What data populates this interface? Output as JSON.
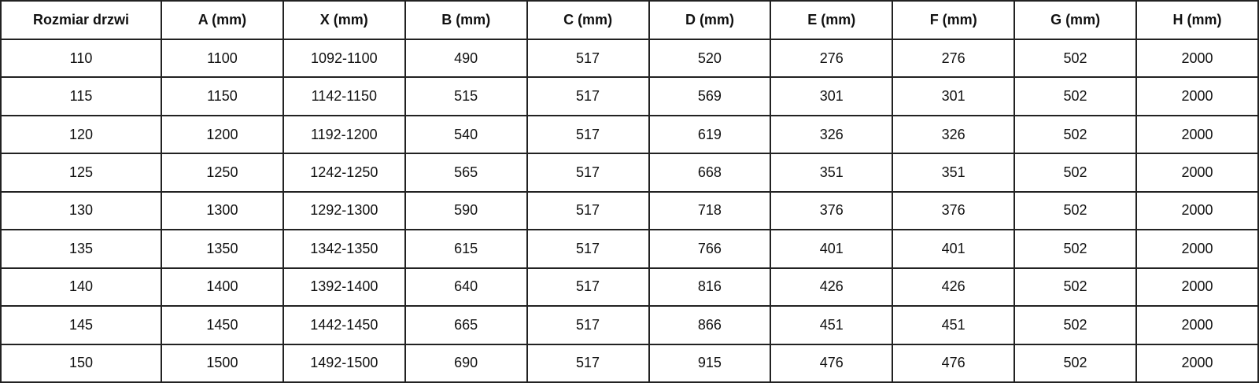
{
  "table": {
    "headers": [
      "Rozmiar drzwi",
      "A (mm)",
      "X (mm)",
      "B (mm)",
      "C (mm)",
      "D (mm)",
      "E (mm)",
      "F (mm)",
      "G (mm)",
      "H (mm)"
    ],
    "rows": [
      [
        "110",
        "1100",
        "1092-1100",
        "490",
        "517",
        "520",
        "276",
        "276",
        "502",
        "2000"
      ],
      [
        "115",
        "1150",
        "1142-1150",
        "515",
        "517",
        "569",
        "301",
        "301",
        "502",
        "2000"
      ],
      [
        "120",
        "1200",
        "1192-1200",
        "540",
        "517",
        "619",
        "326",
        "326",
        "502",
        "2000"
      ],
      [
        "125",
        "1250",
        "1242-1250",
        "565",
        "517",
        "668",
        "351",
        "351",
        "502",
        "2000"
      ],
      [
        "130",
        "1300",
        "1292-1300",
        "590",
        "517",
        "718",
        "376",
        "376",
        "502",
        "2000"
      ],
      [
        "135",
        "1350",
        "1342-1350",
        "615",
        "517",
        "766",
        "401",
        "401",
        "502",
        "2000"
      ],
      [
        "140",
        "1400",
        "1392-1400",
        "640",
        "517",
        "816",
        "426",
        "426",
        "502",
        "2000"
      ],
      [
        "145",
        "1450",
        "1442-1450",
        "665",
        "517",
        "866",
        "451",
        "451",
        "502",
        "2000"
      ],
      [
        "150",
        "1500",
        "1492-1500",
        "690",
        "517",
        "915",
        "476",
        "476",
        "502",
        "2000"
      ]
    ]
  }
}
